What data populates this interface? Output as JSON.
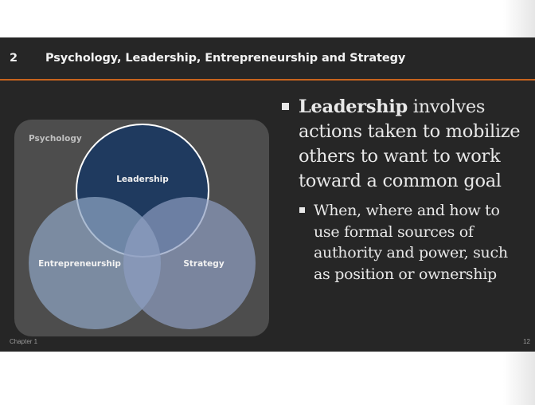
{
  "slide": {
    "number": "2",
    "title": "Psychology, Leadership, Entrepreneurship and Strategy",
    "accent_color": "#c8641e",
    "background_color": "#262626"
  },
  "diagram": {
    "container_label": "Psychology",
    "circles": [
      {
        "label": "Leadership",
        "color": "#1f3a5f"
      },
      {
        "label": "Entrepreneurship",
        "color": "#8ea3c2"
      },
      {
        "label": "Strategy",
        "color": "#8d9dc0"
      }
    ]
  },
  "bullets": {
    "main": {
      "term": "Leadership",
      "rest": "involves actions taken to mobilize others to want to work toward a common goal"
    },
    "sub": "When, where and how to use formal sources of authority and power, such as position or ownership"
  },
  "footer": {
    "chapter": "Chapter 1",
    "page": "12"
  }
}
